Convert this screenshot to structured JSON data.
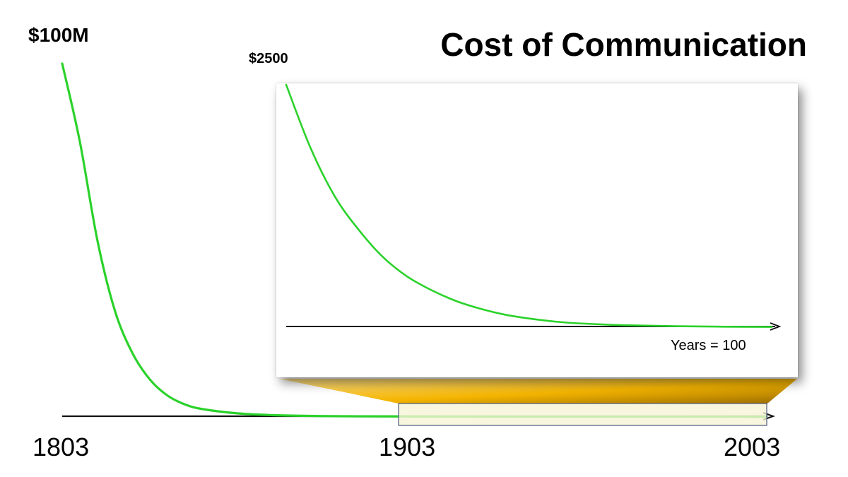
{
  "title": "Cost of Communication",
  "main_chart": {
    "y_max_label": "$100M",
    "x_ticks": [
      "1803",
      "1903",
      "2003"
    ]
  },
  "inset_chart": {
    "y_max_label": "$2500",
    "x_label": "Years = 100"
  },
  "colors": {
    "curve": "#2bd22b",
    "axis": "#111111",
    "highlight_fill": "#f7f3d6",
    "highlight_border": "#4a5a7a",
    "zoom_wedge": "#f2b500"
  },
  "chart_data": [
    {
      "type": "line",
      "title": "",
      "xlabel": "",
      "ylabel": "",
      "x": [
        1803,
        1808,
        1813,
        1818,
        1823,
        1828,
        1833,
        1838,
        1843,
        1853,
        1863,
        1873,
        1883,
        1903,
        1923,
        1943,
        1963,
        1983,
        2003
      ],
      "series": [
        {
          "values": [
            100,
            78,
            50,
            30,
            18,
            10.5,
            6,
            3.5,
            2.2,
            1.0,
            0.5,
            0.3,
            0.2,
            0.12,
            0.1,
            0.08,
            0.07,
            0.06,
            0.05
          ]
        }
      ],
      "xlim": [
        1803,
        2003
      ],
      "y_top_label": "$100M",
      "x_ticks": [
        "1803",
        "1903",
        "2003"
      ]
    },
    {
      "type": "line",
      "title": "",
      "xlabel": "Years = 100",
      "ylabel": "",
      "x": [
        0,
        5,
        10,
        15,
        20,
        25,
        30,
        35,
        40,
        45,
        50,
        55,
        60,
        70,
        80,
        90,
        100
      ],
      "series": [
        {
          "values": [
            2500,
            1850,
            1350,
            1000,
            720,
            520,
            380,
            270,
            190,
            130,
            90,
            60,
            40,
            20,
            10,
            5,
            3
          ]
        }
      ],
      "xlim": [
        0,
        100
      ],
      "y_top_label": "$2500"
    }
  ]
}
